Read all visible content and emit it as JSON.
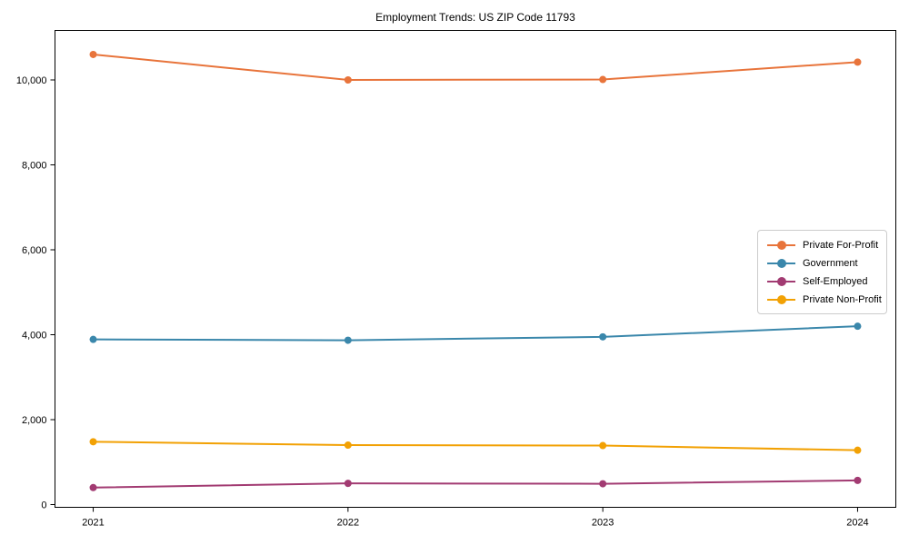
{
  "chart_data": {
    "type": "line",
    "title": "Employment Trends: US ZIP Code 11793",
    "x": [
      2021,
      2022,
      2023,
      2024
    ],
    "x_tick_labels": [
      "2021",
      "2022",
      "2023",
      "2024"
    ],
    "series": [
      {
        "name": "Private For-Profit",
        "color": "#E8743B",
        "values": [
          10600,
          10000,
          10010,
          10420
        ]
      },
      {
        "name": "Government",
        "color": "#3A87AB",
        "values": [
          3890,
          3870,
          3950,
          4200
        ]
      },
      {
        "name": "Self-Employed",
        "color": "#A23B72",
        "values": [
          400,
          500,
          490,
          570
        ]
      },
      {
        "name": "Private Non-Profit",
        "color": "#F2A104",
        "values": [
          1480,
          1400,
          1390,
          1280
        ]
      }
    ],
    "y_ticks": [
      0,
      2000,
      4000,
      6000,
      8000,
      10000
    ],
    "y_tick_labels": [
      "0",
      "2,000",
      "4,000",
      "6,000",
      "8,000",
      "10,000"
    ],
    "xlim": [
      2020.85,
      2024.15
    ],
    "ylim": [
      -64,
      11166
    ],
    "xlabel": "",
    "ylabel": "",
    "grid": false,
    "legend_position": "center-right",
    "axis_color": "#000000",
    "background_color": "#ffffff",
    "marker": "circle",
    "marker_radius": 4,
    "line_width": 2
  }
}
